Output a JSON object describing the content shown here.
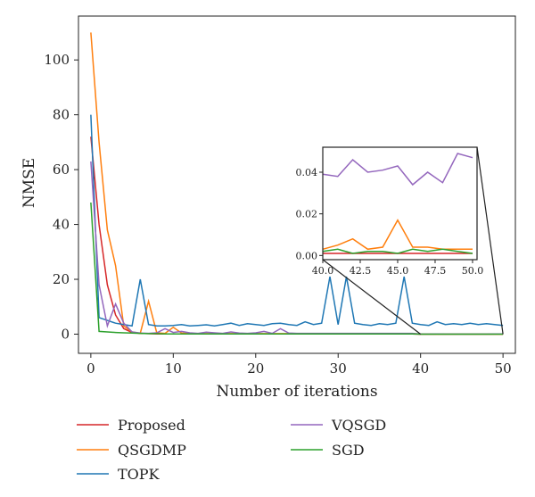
{
  "chart_data": {
    "type": "line",
    "title": "",
    "xlabel": "Number of iterations",
    "ylabel": "NMSE",
    "xlim": [
      -1.5,
      51.5
    ],
    "ylim": [
      -7,
      116
    ],
    "xticks": [
      0,
      10,
      20,
      30,
      40,
      50
    ],
    "yticks": [
      0,
      20,
      40,
      60,
      80,
      100
    ],
    "grid": false,
    "legend": "bottom",
    "series": [
      {
        "name": "Proposed",
        "color": "#d62728",
        "x": [
          0,
          1,
          2,
          3,
          4,
          5,
          6,
          7,
          8,
          9,
          10,
          11,
          12,
          13,
          14,
          15,
          16,
          17,
          18,
          19,
          20,
          21,
          22,
          23,
          24,
          25,
          26,
          27,
          28,
          29,
          30,
          31,
          32,
          33,
          34,
          35,
          36,
          37,
          38,
          39,
          40,
          41,
          42,
          43,
          44,
          45,
          46,
          47,
          48,
          49,
          50
        ],
        "y": [
          72,
          40,
          18,
          7,
          2,
          0.6,
          0.3,
          0.2,
          0.1,
          0.1,
          0.05,
          0.05,
          0.05,
          0.05,
          0.05,
          0.05,
          0.05,
          0.05,
          0.05,
          0.05,
          0.05,
          0.05,
          0.05,
          0.05,
          0.05,
          0.05,
          0.05,
          0.05,
          0.05,
          0.05,
          0.05,
          0.05,
          0.05,
          0.05,
          0.05,
          0.05,
          0.05,
          0.05,
          0.05,
          0.05,
          0.001,
          0.001,
          0.001,
          0.001,
          0.001,
          0.001,
          0.001,
          0.001,
          0.001,
          0.001,
          0.001
        ]
      },
      {
        "name": "QSGDMP",
        "color": "#ff7f0e",
        "x": [
          0,
          1,
          2,
          3,
          4,
          5,
          6,
          7,
          8,
          9,
          10,
          11,
          12,
          13,
          14,
          15,
          16,
          17,
          18,
          19,
          20,
          21,
          22,
          23,
          24,
          25,
          26,
          27,
          28,
          29,
          30,
          31,
          32,
          33,
          34,
          35,
          36,
          37,
          38,
          39,
          40,
          41,
          42,
          43,
          44,
          45,
          46,
          47,
          48,
          49,
          50
        ],
        "y": [
          110,
          70,
          38,
          25,
          3,
          0.8,
          0.3,
          12,
          0.5,
          0.3,
          2.5,
          0.4,
          0.3,
          0.2,
          0.2,
          0.2,
          0.2,
          0.2,
          0.2,
          0.2,
          0.2,
          0.2,
          0.2,
          0.2,
          0.2,
          0.2,
          0.2,
          0.2,
          0.2,
          0.2,
          0.2,
          0.2,
          0.2,
          0.2,
          0.2,
          0.2,
          0.2,
          0.2,
          0.2,
          0.2,
          0.003,
          0.005,
          0.008,
          0.003,
          0.004,
          0.017,
          0.004,
          0.004,
          0.003,
          0.003,
          0.003
        ]
      },
      {
        "name": "TOPK",
        "color": "#1f77b4",
        "x": [
          0,
          1,
          2,
          3,
          4,
          5,
          6,
          7,
          8,
          9,
          10,
          11,
          12,
          13,
          14,
          15,
          16,
          17,
          18,
          19,
          20,
          21,
          22,
          23,
          24,
          25,
          26,
          27,
          28,
          29,
          30,
          31,
          32,
          33,
          34,
          35,
          36,
          37,
          38,
          39,
          40,
          41,
          42,
          43,
          44,
          45,
          46,
          47,
          48,
          49,
          50
        ],
        "y": [
          80,
          6,
          5,
          4,
          3.5,
          3,
          20,
          3.5,
          3,
          3,
          3.2,
          3.5,
          3,
          3.2,
          3.4,
          3,
          3.5,
          4,
          3.2,
          3.8,
          3.5,
          3.2,
          3.8,
          4,
          3.5,
          3.2,
          4.5,
          3.5,
          4,
          21,
          3.5,
          21,
          4,
          3.5,
          3.2,
          3.8,
          3.5,
          4,
          21,
          4,
          3.5,
          3.2,
          4.5,
          3.5,
          3.8,
          3.5,
          4,
          3.5,
          3.8,
          3.5,
          3.2
        ]
      },
      {
        "name": "VQSGD",
        "color": "#9467bd",
        "x": [
          0,
          1,
          2,
          3,
          4,
          5,
          6,
          7,
          8,
          9,
          10,
          11,
          12,
          13,
          14,
          15,
          16,
          17,
          18,
          19,
          20,
          21,
          22,
          23,
          24,
          25,
          26,
          27,
          28,
          29,
          30,
          31,
          32,
          33,
          34,
          35,
          36,
          37,
          38,
          39,
          40,
          41,
          42,
          43,
          44,
          45,
          46,
          47,
          48,
          49,
          50
        ],
        "y": [
          63,
          18,
          3,
          11,
          4,
          0.8,
          0.4,
          0.3,
          0.5,
          2,
          0.6,
          1,
          0.5,
          0.3,
          0.7,
          0.5,
          0.3,
          0.8,
          0.4,
          0.3,
          0.5,
          1,
          0.3,
          2,
          0.4,
          0.3,
          0.3,
          0.3,
          0.3,
          0.3,
          0.3,
          0.3,
          0.3,
          0.3,
          0.3,
          0.3,
          0.3,
          0.3,
          0.3,
          0.3,
          0.039,
          0.038,
          0.046,
          0.04,
          0.041,
          0.043,
          0.034,
          0.04,
          0.035,
          0.049,
          0.047
        ]
      },
      {
        "name": "SGD",
        "color": "#2ca02c",
        "x": [
          0,
          1,
          2,
          3,
          4,
          5,
          6,
          7,
          8,
          9,
          10,
          11,
          12,
          13,
          14,
          15,
          16,
          17,
          18,
          19,
          20,
          21,
          22,
          23,
          24,
          25,
          26,
          27,
          28,
          29,
          30,
          31,
          32,
          33,
          34,
          35,
          36,
          37,
          38,
          39,
          40,
          41,
          42,
          43,
          44,
          45,
          46,
          47,
          48,
          49,
          50
        ],
        "y": [
          48,
          1,
          0.8,
          0.6,
          0.5,
          0.4,
          0.3,
          0.2,
          0.2,
          0.1,
          0.1,
          0.1,
          0.1,
          0.1,
          0.1,
          0.1,
          0.1,
          0.1,
          0.1,
          0.1,
          0.1,
          0.1,
          0.1,
          0.1,
          0.1,
          0.1,
          0.1,
          0.1,
          0.1,
          0.1,
          0.1,
          0.1,
          0.1,
          0.1,
          0.1,
          0.1,
          0.1,
          0.1,
          0.1,
          0.1,
          0.002,
          0.003,
          0.001,
          0.002,
          0.002,
          0.001,
          0.003,
          0.002,
          0.003,
          0.002,
          0.001
        ]
      }
    ],
    "inset": {
      "xlim": [
        40,
        50.3
      ],
      "ylim": [
        -0.002,
        0.052
      ],
      "xticks": [
        "40.0",
        "42.5",
        "45.0",
        "47.5",
        "50.0"
      ],
      "yticks": [
        "0.00",
        "0.02",
        "0.04"
      ]
    }
  }
}
